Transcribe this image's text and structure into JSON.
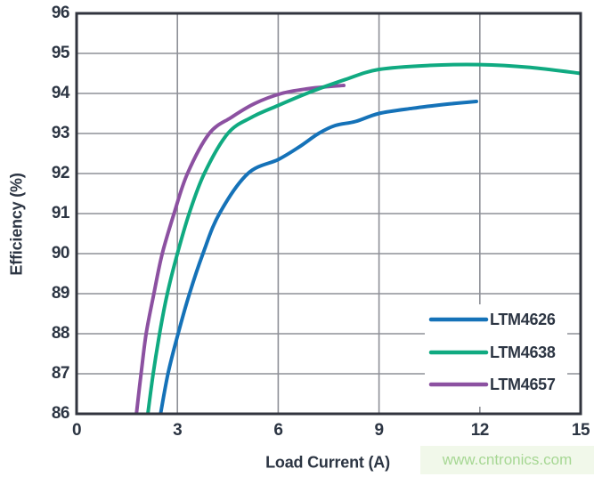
{
  "watermark": {
    "text": "www.cntronics.com",
    "color": "#a6d793",
    "bg": "#f1f8ea"
  },
  "colors": {
    "frame": "#31343e",
    "grid": "#8e9097",
    "text": "#2c3543",
    "plot_background": "#ffffff",
    "legend_background": "#ffffff"
  },
  "chart_data": {
    "type": "line",
    "title": "",
    "xlabel": "Load Current (A)",
    "ylabel": "Efficiency (%)",
    "xlim": [
      0,
      15
    ],
    "ylim": [
      86,
      96
    ],
    "xticks": [
      0,
      3,
      6,
      9,
      12,
      15
    ],
    "yticks": [
      86,
      87,
      88,
      89,
      90,
      91,
      92,
      93,
      94,
      95,
      96
    ],
    "xtick_labels": [
      "0",
      "3",
      "6",
      "9",
      "12",
      "15"
    ],
    "ytick_labels": [
      "86",
      "87",
      "88",
      "89",
      "90",
      "91",
      "92",
      "93",
      "94",
      "95",
      "96"
    ],
    "grid": true,
    "legend_position": "inside-bottom-right",
    "series": [
      {
        "name": "LTM4626",
        "color": "#1572b8",
        "points": [
          [
            2.5,
            86
          ],
          [
            2.72,
            87
          ],
          [
            3.02,
            88
          ],
          [
            3.36,
            89
          ],
          [
            3.76,
            90
          ],
          [
            4.25,
            91
          ],
          [
            5.1,
            92
          ],
          [
            6.0,
            92.35
          ],
          [
            6.6,
            92.65
          ],
          [
            7.2,
            93.0
          ],
          [
            7.7,
            93.2
          ],
          [
            8.3,
            93.3
          ],
          [
            9.0,
            93.5
          ],
          [
            10.0,
            93.63
          ],
          [
            11.0,
            93.73
          ],
          [
            11.9,
            93.8
          ]
        ]
      },
      {
        "name": "LTM4638",
        "color": "#10aa81",
        "points": [
          [
            2.12,
            86
          ],
          [
            2.28,
            87
          ],
          [
            2.47,
            88
          ],
          [
            2.7,
            89
          ],
          [
            3.0,
            90
          ],
          [
            3.35,
            91
          ],
          [
            3.8,
            92
          ],
          [
            4.5,
            93
          ],
          [
            5.2,
            93.4
          ],
          [
            6.0,
            93.7
          ],
          [
            7.0,
            94.05
          ],
          [
            8.0,
            94.35
          ],
          [
            9.0,
            94.6
          ],
          [
            10.5,
            94.7
          ],
          [
            12.0,
            94.72
          ],
          [
            13.5,
            94.65
          ],
          [
            15.0,
            94.5
          ]
        ]
      },
      {
        "name": "LTM4657",
        "color": "#8c51a1",
        "points": [
          [
            1.78,
            86
          ],
          [
            1.92,
            87
          ],
          [
            2.07,
            88
          ],
          [
            2.3,
            89
          ],
          [
            2.55,
            90
          ],
          [
            2.9,
            91
          ],
          [
            3.3,
            92
          ],
          [
            3.95,
            93
          ],
          [
            4.6,
            93.4
          ],
          [
            5.3,
            93.75
          ],
          [
            6.1,
            94.0
          ],
          [
            6.9,
            94.12
          ],
          [
            7.5,
            94.17
          ],
          [
            7.95,
            94.2
          ]
        ]
      }
    ]
  }
}
